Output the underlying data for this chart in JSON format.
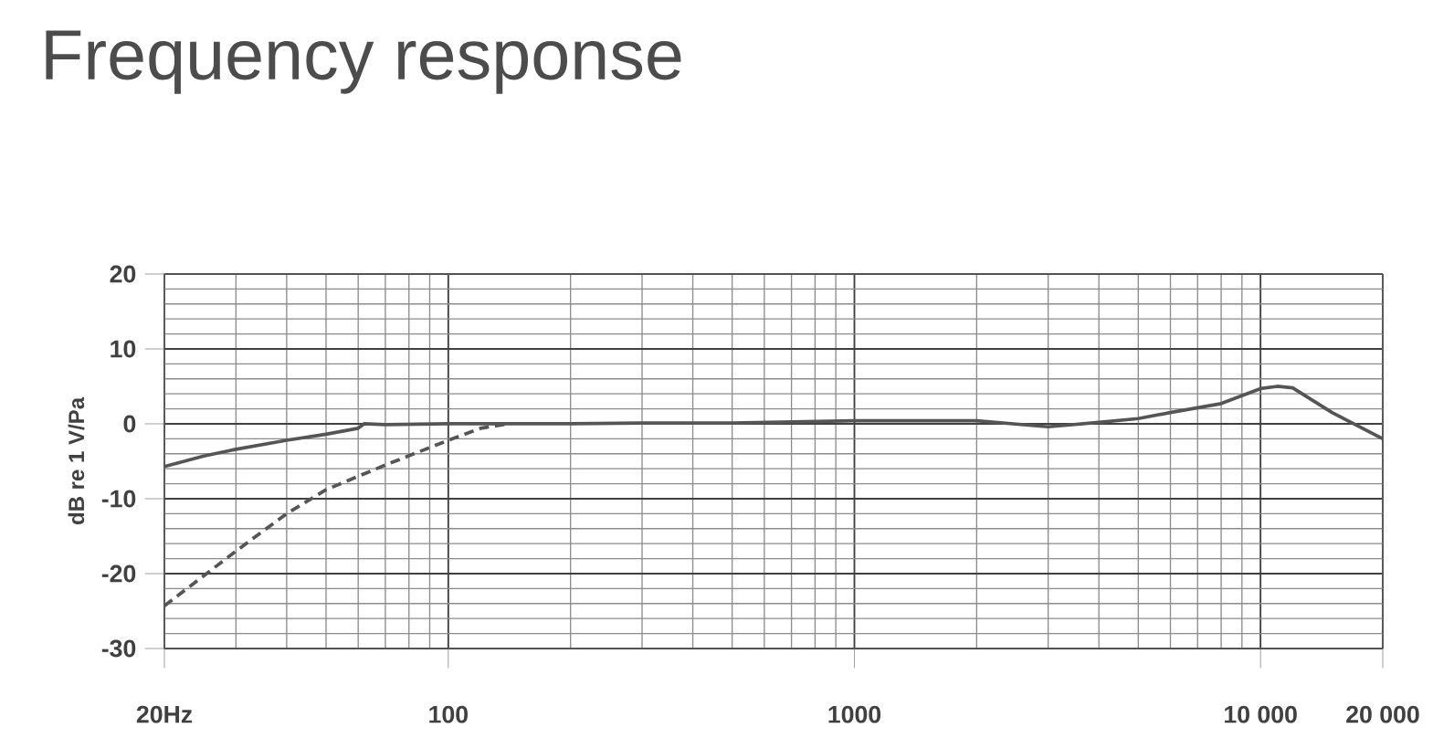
{
  "chart_data": {
    "type": "line",
    "title": "Frequency response",
    "ylabel": "dB re 1 V/Pa",
    "log": "x",
    "grid": true,
    "xlim": [
      20,
      20000
    ],
    "ylim": [
      -30,
      20
    ],
    "xticks": [
      {
        "value": 20,
        "label": "20Hz"
      },
      100,
      1000,
      {
        "value": 10000,
        "label": "10 000"
      },
      {
        "value": 20000,
        "label": "20 000"
      }
    ],
    "yticks": [
      -30,
      -20,
      -10,
      0,
      10,
      20
    ],
    "series": [
      {
        "color": "#555555",
        "line_style": "solid",
        "x": [
          20,
          25,
          30,
          40,
          50,
          60,
          62,
          70,
          100,
          200,
          300,
          500,
          1000,
          2000,
          3000,
          4000,
          5000,
          6000,
          8000,
          10000,
          11000,
          12000,
          15000,
          20000
        ],
        "values": [
          -5.7,
          -4.3,
          -3.4,
          -2.2,
          -1.4,
          -0.6,
          0,
          -0.1,
          0,
          0,
          0.1,
          0.1,
          0.4,
          0.4,
          -0.4,
          0.2,
          0.7,
          1.5,
          2.7,
          4.7,
          5,
          4.8,
          1.5,
          -2
        ]
      },
      {
        "color": "#555555",
        "line_style": "dashed",
        "x": [
          20,
          30,
          40,
          50,
          70,
          100,
          120,
          140
        ],
        "values": [
          -24.3,
          -17,
          -12,
          -8.8,
          -5.5,
          -2.2,
          -0.6,
          0
        ]
      }
    ]
  }
}
